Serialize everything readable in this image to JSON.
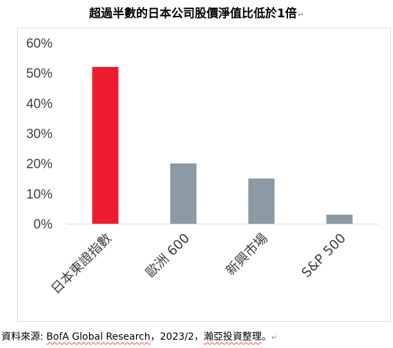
{
  "title": "超過半數的日本公司股價淨值比低於1倍",
  "source": {
    "prefix": "資料來源: ",
    "source_name": "BofA Global Research",
    "date_text": "，2023/2，",
    "author": "瀚亞投資整理",
    "suffix": "。"
  },
  "colors": {
    "highlight": "#ed1c2e",
    "neutral": "#8c9aa5",
    "axis_text": "#404040",
    "axis_line": "#d9d9d9"
  },
  "chart_data": {
    "type": "bar",
    "title": "超過半數的日本公司股價淨值比低於1倍",
    "categories": [
      "日本東證指數",
      "歐洲 600",
      "新興市場",
      "S&P 500"
    ],
    "values": [
      52,
      20,
      15,
      3
    ],
    "bar_colors": [
      "#ed1c2e",
      "#8c9aa5",
      "#8c9aa5",
      "#8c9aa5"
    ],
    "ylim": [
      0,
      60
    ],
    "yticks": [
      0,
      10,
      20,
      30,
      40,
      50,
      60
    ],
    "ytick_labels": [
      "0%",
      "10%",
      "20%",
      "30%",
      "40%",
      "50%",
      "60%"
    ],
    "xlabel": "",
    "ylabel": "",
    "grid": false,
    "legend": "none"
  }
}
